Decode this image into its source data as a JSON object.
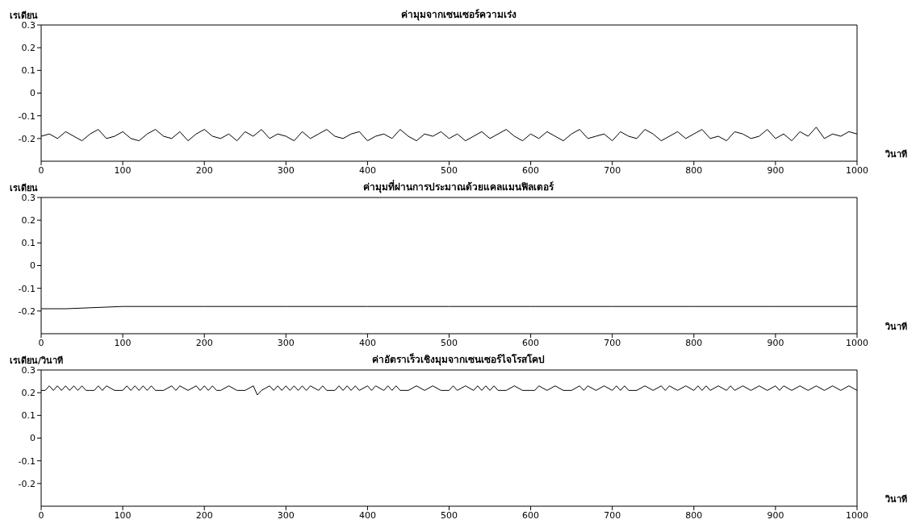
{
  "chart_data": [
    {
      "type": "line",
      "title": "ค่ามุมจากเซนเซอร์ความเร่ง",
      "ylabel": "เรเดียน",
      "xlabel": "วินาที",
      "xlim": [
        0,
        1000
      ],
      "xticks": [
        0,
        100,
        200,
        300,
        400,
        500,
        600,
        700,
        800,
        900,
        1000
      ],
      "ylim": [
        -0.3,
        0.3
      ],
      "yticks": [
        -0.2,
        -0.1,
        0,
        0.1,
        0.2,
        0.3
      ],
      "x": [
        0,
        10,
        20,
        30,
        40,
        50,
        60,
        70,
        80,
        90,
        100,
        110,
        120,
        130,
        140,
        150,
        160,
        170,
        180,
        190,
        200,
        210,
        220,
        230,
        240,
        250,
        260,
        270,
        280,
        290,
        300,
        310,
        320,
        330,
        340,
        350,
        360,
        370,
        380,
        390,
        400,
        410,
        420,
        430,
        440,
        450,
        460,
        470,
        480,
        490,
        500,
        510,
        520,
        530,
        540,
        550,
        560,
        570,
        580,
        590,
        600,
        610,
        620,
        630,
        640,
        650,
        660,
        670,
        680,
        690,
        700,
        710,
        720,
        730,
        740,
        750,
        760,
        770,
        780,
        790,
        800,
        810,
        820,
        830,
        840,
        850,
        860,
        870,
        880,
        890,
        900,
        910,
        920,
        930,
        940,
        950,
        960,
        970,
        980,
        990,
        1000
      ],
      "series": [
        {
          "color": "#000000",
          "values": [
            -0.19,
            -0.18,
            -0.2,
            -0.17,
            -0.19,
            -0.21,
            -0.18,
            -0.16,
            -0.2,
            -0.19,
            -0.17,
            -0.2,
            -0.21,
            -0.18,
            -0.16,
            -0.19,
            -0.2,
            -0.17,
            -0.21,
            -0.18,
            -0.16,
            -0.19,
            -0.2,
            -0.18,
            -0.21,
            -0.17,
            -0.19,
            -0.16,
            -0.2,
            -0.18,
            -0.19,
            -0.21,
            -0.17,
            -0.2,
            -0.18,
            -0.16,
            -0.19,
            -0.2,
            -0.18,
            -0.17,
            -0.21,
            -0.19,
            -0.18,
            -0.2,
            -0.16,
            -0.19,
            -0.21,
            -0.18,
            -0.19,
            -0.17,
            -0.2,
            -0.18,
            -0.21,
            -0.19,
            -0.17,
            -0.2,
            -0.18,
            -0.16,
            -0.19,
            -0.21,
            -0.18,
            -0.2,
            -0.17,
            -0.19,
            -0.21,
            -0.18,
            -0.16,
            -0.2,
            -0.19,
            -0.18,
            -0.21,
            -0.17,
            -0.19,
            -0.2,
            -0.16,
            -0.18,
            -0.21,
            -0.19,
            -0.17,
            -0.2,
            -0.18,
            -0.16,
            -0.2,
            -0.19,
            -0.21,
            -0.17,
            -0.18,
            -0.2,
            -0.19,
            -0.16,
            -0.2,
            -0.18,
            -0.21,
            -0.17,
            -0.19,
            -0.15,
            -0.2,
            -0.18,
            -0.19,
            -0.17,
            -0.18
          ]
        }
      ]
    },
    {
      "type": "line",
      "title": "ค่ามุมที่ผ่านการประมาณด้วยแคลแมนฟิลเตอร์",
      "ylabel": "เรเดียน",
      "xlabel": "วินาที",
      "xlim": [
        0,
        1000
      ],
      "xticks": [
        0,
        100,
        200,
        300,
        400,
        500,
        600,
        700,
        800,
        900,
        1000
      ],
      "ylim": [
        -0.3,
        0.3
      ],
      "yticks": [
        -0.2,
        -0.1,
        0,
        0.1,
        0.2,
        0.3
      ],
      "x": [
        0,
        10,
        20,
        30,
        100,
        200,
        300,
        400,
        500,
        600,
        700,
        800,
        900,
        1000
      ],
      "series": [
        {
          "color": "#000000",
          "values": [
            -0.19,
            -0.19,
            -0.19,
            -0.19,
            -0.18,
            -0.18,
            -0.18,
            -0.18,
            -0.18,
            -0.18,
            -0.18,
            -0.18,
            -0.18,
            -0.18
          ]
        }
      ]
    },
    {
      "type": "line",
      "title": "ค่าอัตราเร็วเชิงมุมจากเซนเซอร์ไจโรสโคป",
      "ylabel": "เรเดียน/วินาที",
      "xlabel": "วินาที",
      "xlim": [
        0,
        1000
      ],
      "xticks": [
        0,
        100,
        200,
        300,
        400,
        500,
        600,
        700,
        800,
        900,
        1000
      ],
      "ylim": [
        -0.3,
        0.3
      ],
      "yticks": [
        -0.2,
        -0.1,
        0,
        0.1,
        0.2,
        0.3
      ],
      "x": [
        0,
        5,
        10,
        15,
        20,
        25,
        30,
        35,
        40,
        45,
        50,
        55,
        60,
        65,
        70,
        75,
        80,
        90,
        100,
        105,
        110,
        115,
        120,
        125,
        130,
        135,
        140,
        150,
        160,
        165,
        170,
        180,
        190,
        195,
        200,
        205,
        210,
        215,
        220,
        230,
        240,
        250,
        260,
        265,
        270,
        280,
        285,
        290,
        295,
        300,
        305,
        310,
        315,
        320,
        325,
        330,
        340,
        345,
        350,
        360,
        365,
        370,
        375,
        380,
        385,
        390,
        400,
        405,
        410,
        420,
        425,
        430,
        435,
        440,
        450,
        460,
        470,
        480,
        490,
        500,
        505,
        510,
        520,
        530,
        535,
        540,
        545,
        550,
        555,
        560,
        570,
        580,
        590,
        600,
        605,
        610,
        620,
        630,
        640,
        650,
        660,
        665,
        670,
        680,
        690,
        700,
        705,
        710,
        715,
        720,
        730,
        740,
        750,
        760,
        765,
        770,
        780,
        790,
        800,
        805,
        810,
        815,
        820,
        830,
        840,
        845,
        850,
        860,
        870,
        880,
        890,
        900,
        905,
        910,
        920,
        930,
        940,
        950,
        960,
        970,
        980,
        990,
        1000
      ],
      "series": [
        {
          "color": "#000000",
          "values": [
            0.21,
            0.21,
            0.23,
            0.21,
            0.23,
            0.21,
            0.23,
            0.21,
            0.23,
            0.21,
            0.23,
            0.21,
            0.21,
            0.21,
            0.23,
            0.21,
            0.23,
            0.21,
            0.21,
            0.23,
            0.21,
            0.23,
            0.21,
            0.23,
            0.21,
            0.23,
            0.21,
            0.21,
            0.23,
            0.21,
            0.23,
            0.21,
            0.23,
            0.21,
            0.23,
            0.21,
            0.23,
            0.21,
            0.21,
            0.23,
            0.21,
            0.21,
            0.23,
            0.19,
            0.21,
            0.23,
            0.21,
            0.23,
            0.21,
            0.23,
            0.21,
            0.23,
            0.21,
            0.23,
            0.21,
            0.23,
            0.21,
            0.23,
            0.21,
            0.21,
            0.23,
            0.21,
            0.23,
            0.21,
            0.23,
            0.21,
            0.23,
            0.21,
            0.23,
            0.21,
            0.23,
            0.21,
            0.23,
            0.21,
            0.21,
            0.23,
            0.21,
            0.23,
            0.21,
            0.21,
            0.23,
            0.21,
            0.23,
            0.21,
            0.23,
            0.21,
            0.23,
            0.21,
            0.23,
            0.21,
            0.21,
            0.23,
            0.21,
            0.21,
            0.21,
            0.23,
            0.21,
            0.23,
            0.21,
            0.21,
            0.23,
            0.21,
            0.23,
            0.21,
            0.23,
            0.21,
            0.23,
            0.21,
            0.23,
            0.21,
            0.21,
            0.23,
            0.21,
            0.23,
            0.21,
            0.23,
            0.21,
            0.23,
            0.21,
            0.23,
            0.21,
            0.23,
            0.21,
            0.23,
            0.21,
            0.23,
            0.21,
            0.23,
            0.21,
            0.23,
            0.21,
            0.23,
            0.21,
            0.23,
            0.21,
            0.23,
            0.21,
            0.23,
            0.21,
            0.23,
            0.21,
            0.23,
            0.21
          ]
        }
      ]
    }
  ]
}
